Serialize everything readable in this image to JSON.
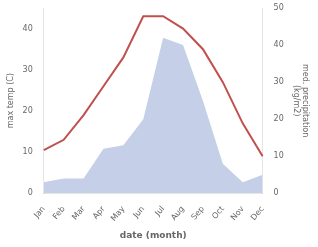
{
  "chart_data": {
    "type": "line",
    "categories": [
      "Jan",
      "Feb",
      "Mar",
      "Apr",
      "May",
      "Jun",
      "Jul",
      "Aug",
      "Sep",
      "Oct",
      "Nov",
      "Dec"
    ],
    "series": [
      {
        "type": "area",
        "color": "#c5d0e8",
        "axis": "y2",
        "values": [
          3,
          4,
          4,
          12,
          13,
          20,
          42,
          40,
          25,
          8,
          3,
          5
        ]
      },
      {
        "type": "line",
        "color": "#c0504d",
        "values": [
          10.5,
          13,
          19,
          26,
          33,
          43,
          43,
          40,
          35,
          27,
          17,
          9
        ]
      }
    ],
    "xlabel": "date (month)",
    "ylabel": "max temp (C)",
    "y2label": "med. precipitation\n(kg/m2)",
    "ylim": [
      0,
      45
    ],
    "yticks": [
      0,
      10,
      20,
      30,
      40
    ],
    "y2lim": [
      0,
      50
    ],
    "y2ticks": [
      0,
      10,
      20,
      30,
      40,
      50
    ],
    "grid": false
  }
}
